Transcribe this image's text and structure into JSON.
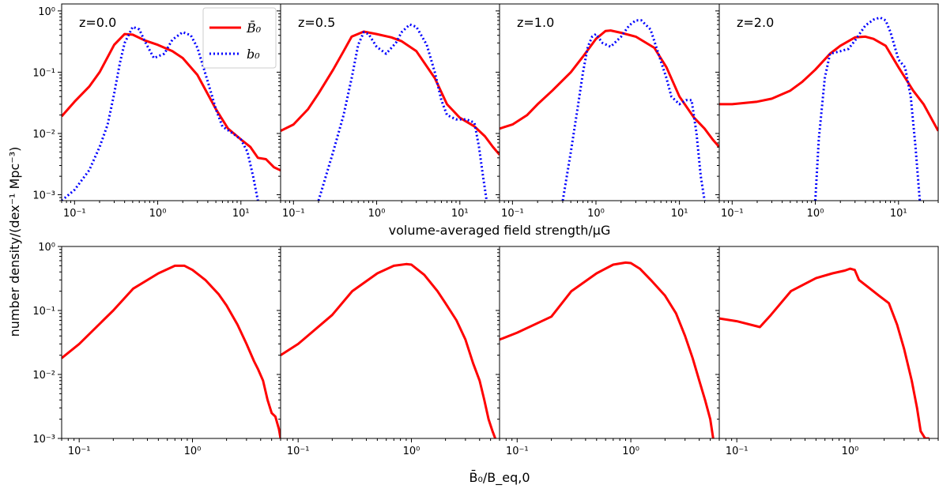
{
  "figure": {
    "xlabel_top": "volume-averaged field strength/μG",
    "ylabel": "number density/(dex⁻¹ Mpc⁻³)",
    "xlabel_bottom": "B̄₀/B_eq,0",
    "colors": {
      "Bbar0": "#ff0000",
      "b0": "#0000ff"
    }
  },
  "legend": {
    "items": [
      "B̄₀",
      "b₀"
    ],
    "placement": "top-right of first panel"
  },
  "chart_data": [
    {
      "type": "line",
      "panel": "top-1",
      "label": "z=0.0",
      "xscale": "log",
      "yscale": "log",
      "xlim": [
        0.07,
        30
      ],
      "ylim": [
        0.0008,
        1.3
      ],
      "series": [
        {
          "name": "B̄₀",
          "x": [
            0.07,
            0.1,
            0.15,
            0.2,
            0.3,
            0.4,
            0.5,
            0.7,
            1.0,
            1.5,
            2,
            3,
            5,
            7,
            10,
            13,
            16,
            20,
            25,
            30
          ],
          "y": [
            0.019,
            0.033,
            0.058,
            0.1,
            0.28,
            0.42,
            0.41,
            0.33,
            0.28,
            0.22,
            0.17,
            0.09,
            0.025,
            0.012,
            0.008,
            0.006,
            0.004,
            0.0038,
            0.0028,
            0.0025
          ]
        },
        {
          "name": "b₀",
          "x": [
            0.07,
            0.1,
            0.15,
            0.2,
            0.25,
            0.3,
            0.35,
            0.4,
            0.5,
            0.6,
            0.7,
            0.9,
            1.2,
            1.5,
            2,
            2.5,
            3,
            4,
            5,
            6,
            8,
            10,
            12,
            14,
            16
          ],
          "y": [
            0.0008,
            0.0012,
            0.0025,
            0.006,
            0.014,
            0.045,
            0.14,
            0.3,
            0.55,
            0.5,
            0.32,
            0.17,
            0.2,
            0.34,
            0.45,
            0.4,
            0.25,
            0.07,
            0.025,
            0.013,
            0.01,
            0.008,
            0.005,
            0.002,
            0.0008
          ]
        }
      ]
    },
    {
      "type": "line",
      "panel": "top-2",
      "label": "z=0.5",
      "xscale": "log",
      "yscale": "log",
      "xlim": [
        0.07,
        30
      ],
      "ylim": [
        0.0008,
        1.3
      ],
      "series": [
        {
          "name": "B̄₀",
          "x": [
            0.07,
            0.1,
            0.15,
            0.2,
            0.3,
            0.4,
            0.5,
            0.7,
            1.0,
            1.5,
            2,
            3,
            5,
            7,
            10,
            15,
            20,
            25,
            30
          ],
          "y": [
            0.011,
            0.014,
            0.025,
            0.045,
            0.11,
            0.22,
            0.38,
            0.46,
            0.42,
            0.37,
            0.32,
            0.22,
            0.08,
            0.03,
            0.018,
            0.013,
            0.009,
            0.006,
            0.0045
          ]
        },
        {
          "name": "b₀",
          "x": [
            0.2,
            0.3,
            0.4,
            0.5,
            0.6,
            0.7,
            0.8,
            1.0,
            1.3,
            1.7,
            2,
            2.5,
            3,
            4,
            5,
            6,
            7,
            9,
            12,
            15,
            17,
            19,
            21
          ],
          "y": [
            0.0008,
            0.005,
            0.02,
            0.08,
            0.28,
            0.45,
            0.42,
            0.26,
            0.2,
            0.3,
            0.45,
            0.6,
            0.55,
            0.28,
            0.1,
            0.035,
            0.02,
            0.017,
            0.017,
            0.015,
            0.006,
            0.002,
            0.0008
          ]
        }
      ]
    },
    {
      "type": "line",
      "panel": "top-3",
      "label": "z=1.0",
      "xscale": "log",
      "yscale": "log",
      "xlim": [
        0.07,
        30
      ],
      "ylim": [
        0.0008,
        1.3
      ],
      "series": [
        {
          "name": "B̄₀",
          "x": [
            0.07,
            0.1,
            0.15,
            0.2,
            0.3,
            0.5,
            0.7,
            1.0,
            1.3,
            1.5,
            2,
            3,
            5,
            7,
            10,
            15,
            20,
            25,
            30
          ],
          "y": [
            0.012,
            0.014,
            0.02,
            0.03,
            0.05,
            0.1,
            0.18,
            0.35,
            0.47,
            0.48,
            0.44,
            0.38,
            0.25,
            0.12,
            0.04,
            0.018,
            0.012,
            0.008,
            0.006
          ]
        },
        {
          "name": "b₀",
          "x": [
            0.4,
            0.5,
            0.6,
            0.7,
            0.8,
            0.9,
            1.0,
            1.2,
            1.5,
            2,
            2.5,
            3,
            3.5,
            4.5,
            6,
            7,
            8,
            10,
            12,
            14,
            16,
            18,
            20
          ],
          "y": [
            0.0008,
            0.005,
            0.025,
            0.1,
            0.26,
            0.38,
            0.42,
            0.3,
            0.26,
            0.38,
            0.58,
            0.7,
            0.7,
            0.5,
            0.15,
            0.08,
            0.04,
            0.03,
            0.035,
            0.035,
            0.01,
            0.002,
            0.0008
          ]
        }
      ]
    },
    {
      "type": "line",
      "panel": "top-4",
      "label": "z=2.0",
      "xscale": "log",
      "yscale": "log",
      "xlim": [
        0.07,
        30
      ],
      "ylim": [
        0.0008,
        1.3
      ],
      "series": [
        {
          "name": "B̄₀",
          "x": [
            0.07,
            0.1,
            0.2,
            0.3,
            0.5,
            0.7,
            1.0,
            1.5,
            2,
            3,
            4,
            5,
            7,
            10,
            15,
            20,
            30
          ],
          "y": [
            0.03,
            0.03,
            0.033,
            0.037,
            0.05,
            0.07,
            0.11,
            0.2,
            0.27,
            0.37,
            0.38,
            0.35,
            0.27,
            0.12,
            0.05,
            0.03,
            0.011
          ]
        },
        {
          "name": "b₀",
          "x": [
            1.0,
            1.1,
            1.3,
            1.5,
            2,
            2.5,
            3,
            4,
            5,
            6,
            7,
            8,
            10,
            12,
            14,
            16,
            18
          ],
          "y": [
            0.0008,
            0.008,
            0.08,
            0.2,
            0.22,
            0.24,
            0.33,
            0.58,
            0.72,
            0.78,
            0.7,
            0.45,
            0.16,
            0.12,
            0.04,
            0.006,
            0.0008
          ]
        }
      ]
    },
    {
      "type": "line",
      "panel": "bottom-1",
      "xscale": "log",
      "yscale": "log",
      "xlim": [
        0.07,
        6
      ],
      "ylim": [
        0.001,
        1
      ],
      "series": [
        {
          "name": "B̄₀",
          "x": [
            0.07,
            0.1,
            0.2,
            0.3,
            0.5,
            0.7,
            0.85,
            1.0,
            1.3,
            1.7,
            2,
            2.5,
            3,
            3.5,
            3.8,
            4.2,
            4.6,
            5,
            5.4,
            5.8,
            6
          ],
          "y": [
            0.018,
            0.03,
            0.1,
            0.22,
            0.38,
            0.5,
            0.5,
            0.43,
            0.3,
            0.18,
            0.12,
            0.06,
            0.03,
            0.016,
            0.012,
            0.008,
            0.004,
            0.0025,
            0.0022,
            0.0014,
            0.001
          ]
        }
      ]
    },
    {
      "type": "line",
      "panel": "bottom-2",
      "xscale": "log",
      "yscale": "log",
      "xlim": [
        0.07,
        6
      ],
      "ylim": [
        0.001,
        1
      ],
      "series": [
        {
          "name": "B̄₀",
          "x": [
            0.07,
            0.1,
            0.2,
            0.3,
            0.5,
            0.7,
            0.9,
            1.0,
            1.3,
            1.7,
            2,
            2.5,
            3,
            3.5,
            4,
            4.4,
            4.8,
            5.2,
            5.5
          ],
          "y": [
            0.02,
            0.03,
            0.085,
            0.2,
            0.38,
            0.5,
            0.53,
            0.52,
            0.36,
            0.2,
            0.13,
            0.07,
            0.035,
            0.015,
            0.008,
            0.004,
            0.002,
            0.0013,
            0.001
          ]
        }
      ]
    },
    {
      "type": "line",
      "panel": "bottom-3",
      "xscale": "log",
      "yscale": "log",
      "xlim": [
        0.07,
        6
      ],
      "ylim": [
        0.001,
        1
      ],
      "series": [
        {
          "name": "B̄₀",
          "x": [
            0.07,
            0.1,
            0.2,
            0.3,
            0.5,
            0.7,
            0.9,
            1.0,
            1.2,
            1.5,
            2,
            2.5,
            3,
            3.5,
            4,
            4.5,
            5,
            5.3
          ],
          "y": [
            0.035,
            0.045,
            0.08,
            0.2,
            0.38,
            0.52,
            0.56,
            0.55,
            0.45,
            0.3,
            0.17,
            0.09,
            0.04,
            0.018,
            0.008,
            0.004,
            0.002,
            0.001
          ]
        }
      ]
    },
    {
      "type": "line",
      "panel": "bottom-4",
      "xscale": "log",
      "yscale": "log",
      "xlim": [
        0.07,
        6
      ],
      "ylim": [
        0.001,
        1
      ],
      "series": [
        {
          "name": "B̄₀",
          "x": [
            0.07,
            0.1,
            0.16,
            0.2,
            0.3,
            0.5,
            0.7,
            0.9,
            1.0,
            1.1,
            1.2,
            1.5,
            1.8,
            2.2,
            2.6,
            3,
            3.5,
            3.9,
            4.2,
            4.6,
            5
          ],
          "y": [
            0.075,
            0.068,
            0.055,
            0.085,
            0.2,
            0.32,
            0.38,
            0.42,
            0.45,
            0.43,
            0.3,
            0.22,
            0.17,
            0.13,
            0.06,
            0.025,
            0.008,
            0.003,
            0.0013,
            0.001,
            0.001
          ]
        }
      ]
    }
  ]
}
